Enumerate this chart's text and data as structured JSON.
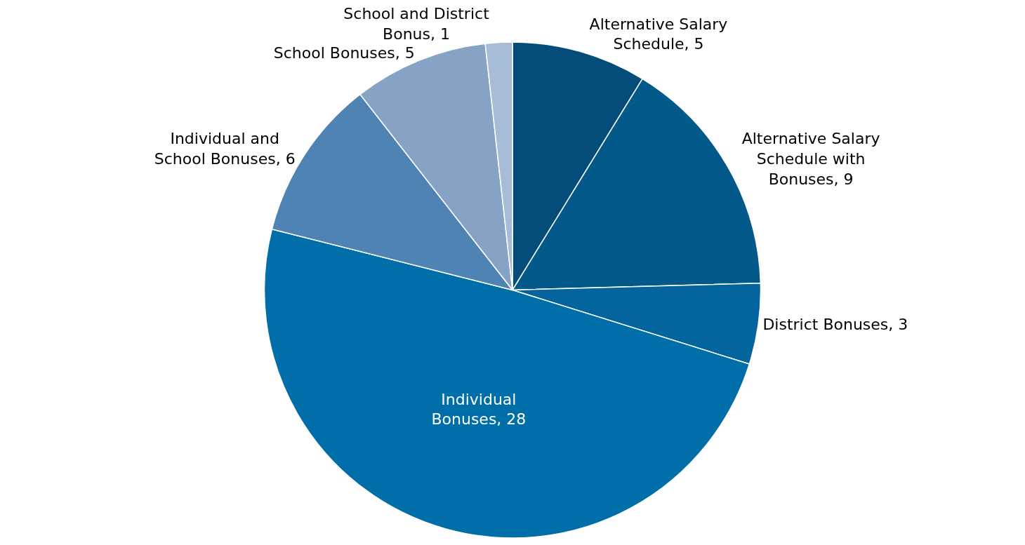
{
  "chart_data": {
    "type": "pie",
    "categories": [
      "Alternative Salary Schedule, 5",
      "Alternative Salary Schedule with Bonuses, 9",
      "District Bonuses, 3",
      "Individual Bonuses, 28",
      "Individual and School Bonuses, 6",
      "School Bonuses, 5",
      "School and District Bonus, 1"
    ],
    "values": [
      5,
      9,
      3,
      28,
      6,
      5,
      1
    ],
    "colors": [
      "#044d7a",
      "#03598a",
      "#04659e",
      "#006ea8",
      "#4f83b4",
      "#86a3c6",
      "#a7bcd6"
    ],
    "legend": false
  }
}
